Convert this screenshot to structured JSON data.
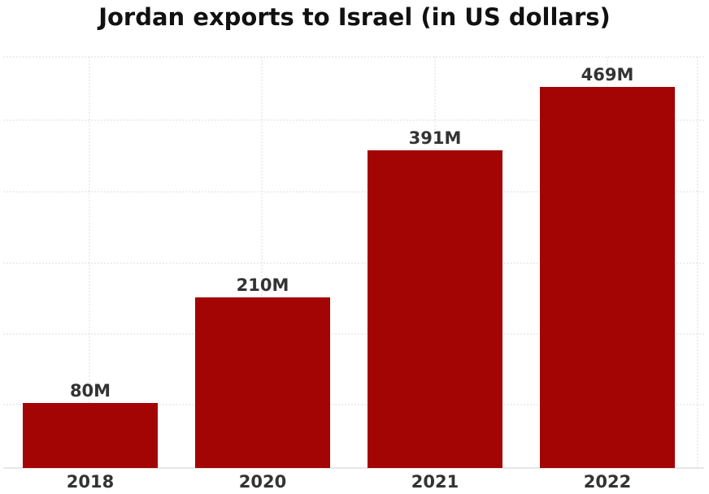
{
  "chart_data": {
    "type": "bar",
    "title": "Jordan exports to Israel (in US dollars)",
    "xlabel": "",
    "ylabel": "",
    "categories": [
      "2018",
      "2020",
      "2021",
      "2022"
    ],
    "values": [
      80,
      210,
      391,
      469
    ],
    "value_labels": [
      "80M",
      "210M",
      "391M",
      "469M"
    ],
    "unit": "M",
    "ylim": [
      0,
      500
    ],
    "grid": true,
    "legend": "none",
    "bar_color": "#a30404"
  }
}
